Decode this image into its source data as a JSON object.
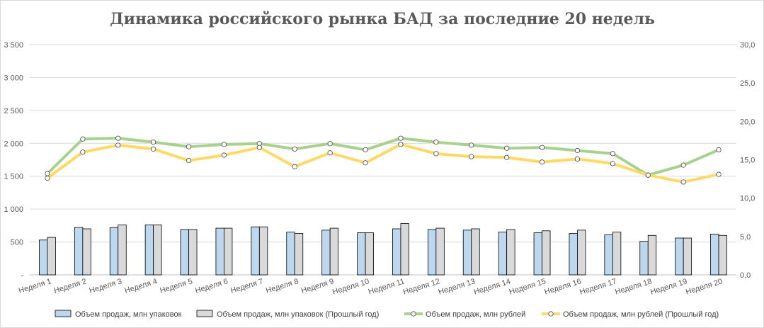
{
  "chart_data": {
    "type": "bar+line",
    "title": "Динамика российского рынка БАД за последние 20 недель",
    "categories": [
      "Неделя 1",
      "Неделя 2",
      "Неделя 3",
      "Неделя 4",
      "Неделя 5",
      "Неделя 6",
      "Неделя 7",
      "Неделя 8",
      "Неделя 9",
      "Неделя 10",
      "Неделя 11",
      "Неделя 12",
      "Неделя 13",
      "Неделя 14",
      "Неделя 15",
      "Неделя 16",
      "Неделя 17",
      "Неделя 18",
      "Неделя 19",
      "Неделя 20"
    ],
    "y_left": {
      "ylim": [
        0,
        3500
      ],
      "ticks": [
        "-",
        "500",
        "1 000",
        "1 500",
        "2 000",
        "2 500",
        "3 000",
        "3 500"
      ]
    },
    "y_right": {
      "ylim": [
        0,
        30
      ],
      "ticks": [
        "0,0",
        "5,0",
        "10,0",
        "15,0",
        "20,0",
        "25,0",
        "30,0"
      ]
    },
    "grid": true,
    "legend_position": "bottom",
    "series": [
      {
        "name": "Объем продаж, млн упаковок",
        "kind": "bar",
        "axis": "left",
        "color": "#bdd7ee",
        "values": [
          530,
          720,
          720,
          760,
          690,
          710,
          730,
          650,
          680,
          640,
          700,
          690,
          680,
          650,
          640,
          630,
          610,
          510,
          560,
          620
        ]
      },
      {
        "name": "Объем продаж, млн упаковок (Прошлый год)",
        "kind": "bar",
        "axis": "left",
        "color": "#d9d9d9",
        "values": [
          570,
          700,
          760,
          760,
          690,
          710,
          730,
          630,
          710,
          640,
          780,
          710,
          700,
          690,
          670,
          680,
          650,
          600,
          560,
          600
        ]
      },
      {
        "name": "Объем продаж, млн рублей",
        "kind": "line",
        "axis": "right",
        "color": "#a9d18e",
        "values": [
          13.2,
          17.7,
          17.8,
          17.3,
          16.7,
          17.0,
          17.1,
          16.4,
          17.1,
          16.3,
          17.8,
          17.3,
          16.9,
          16.5,
          16.6,
          16.2,
          15.8,
          13.0,
          14.3,
          16.3
        ]
      },
      {
        "name": "Объем продаж, млн рублей (Прошлый год)",
        "kind": "line",
        "axis": "right",
        "color": "#ffd966",
        "values": [
          12.6,
          16.0,
          16.9,
          16.4,
          14.9,
          15.6,
          16.6,
          14.1,
          15.9,
          14.6,
          17.0,
          15.8,
          15.4,
          15.3,
          14.7,
          15.1,
          14.5,
          13.0,
          12.1,
          13.1
        ]
      }
    ]
  }
}
